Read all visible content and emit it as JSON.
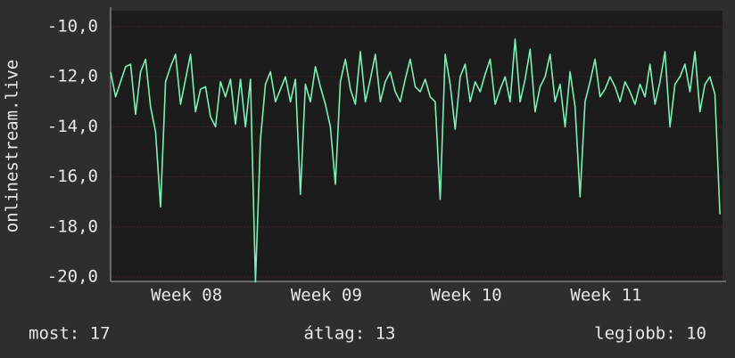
{
  "chart_data": {
    "type": "line",
    "y_label": "onlinestream.live",
    "color": "#7ef0b4",
    "grid": true,
    "xlim": [
      0,
      30.63
    ],
    "xticks": [
      {
        "value": 3.8,
        "label": "Week 08"
      },
      {
        "value": 10.8,
        "label": "Week 09"
      },
      {
        "value": 17.8,
        "label": "Week 10"
      },
      {
        "value": 24.8,
        "label": "Week 11"
      }
    ],
    "ylim": [
      -20.18,
      -9.36
    ],
    "yticks": [
      {
        "value": -10,
        "label": "-10,0"
      },
      {
        "value": -12,
        "label": "-12,0"
      },
      {
        "value": -14,
        "label": "-14,0"
      },
      {
        "value": -16,
        "label": "-16,0"
      },
      {
        "value": -18,
        "label": "-18,0"
      },
      {
        "value": -20,
        "label": "-20,0"
      }
    ],
    "x": [
      0,
      0.25,
      0.5,
      0.75,
      1,
      1.25,
      1.5,
      1.75,
      2,
      2.25,
      2.5,
      2.75,
      3,
      3.25,
      3.5,
      3.75,
      4,
      4.25,
      4.5,
      4.75,
      5,
      5.25,
      5.5,
      5.75,
      6,
      6.25,
      6.5,
      6.75,
      7,
      7.25,
      7.5,
      7.75,
      8,
      8.25,
      8.5,
      8.75,
      9,
      9.25,
      9.5,
      9.75,
      10,
      10.25,
      10.5,
      10.75,
      11,
      11.25,
      11.5,
      11.75,
      12,
      12.25,
      12.5,
      12.75,
      13,
      13.25,
      13.5,
      13.75,
      14,
      14.25,
      14.5,
      14.75,
      15,
      15.25,
      15.5,
      15.75,
      16,
      16.25,
      16.5,
      16.75,
      17,
      17.25,
      17.5,
      17.75,
      18,
      18.25,
      18.5,
      18.75,
      19,
      19.25,
      19.5,
      19.75,
      20,
      20.25,
      20.5,
      20.75,
      21,
      21.25,
      21.5,
      21.75,
      22,
      22.25,
      22.5,
      22.75,
      23,
      23.25,
      23.5,
      23.75,
      24,
      24.25,
      24.5,
      24.75,
      25,
      25.25,
      25.5,
      25.75,
      26,
      26.25,
      26.5,
      26.75,
      27,
      27.25,
      27.5,
      27.75,
      28,
      28.25,
      28.5,
      28.75,
      29,
      29.25,
      29.5,
      29.75,
      30,
      30.25,
      30.5
    ],
    "values": [
      -11.8,
      -12.8,
      -12.2,
      -11.6,
      -11.5,
      -13.5,
      -11.8,
      -11.3,
      -13.2,
      -14.2,
      -17.2,
      -12.2,
      -11.6,
      -11.1,
      -13.1,
      -12.1,
      -11.1,
      -13.4,
      -12.5,
      -12.4,
      -13.6,
      -14.0,
      -12.2,
      -12.8,
      -12.1,
      -13.9,
      -12.1,
      -14.0,
      -12.1,
      -20.2,
      -14.5,
      -12.3,
      -11.8,
      -13.0,
      -12.5,
      -12.0,
      -13.0,
      -12.1,
      -16.7,
      -12.3,
      -13.0,
      -11.6,
      -12.4,
      -13.1,
      -14.0,
      -16.3,
      -12.2,
      -11.3,
      -12.5,
      -13.1,
      -11.0,
      -13.0,
      -12.1,
      -11.1,
      -13.0,
      -12.2,
      -11.8,
      -12.6,
      -13.0,
      -12.1,
      -11.3,
      -12.4,
      -12.6,
      -12.1,
      -12.8,
      -13.0,
      -16.9,
      -11.1,
      -12.3,
      -14.1,
      -12.0,
      -11.5,
      -13.0,
      -12.2,
      -12.6,
      -11.9,
      -11.3,
      -13.1,
      -12.5,
      -12.0,
      -13.0,
      -10.5,
      -13.0,
      -12.1,
      -10.9,
      -13.4,
      -12.4,
      -12.0,
      -11.1,
      -13.0,
      -12.3,
      -14.0,
      -11.8,
      -13.2,
      -16.8,
      -13.0,
      -12.2,
      -11.3,
      -12.8,
      -12.5,
      -12.0,
      -12.4,
      -13.0,
      -12.2,
      -12.6,
      -13.1,
      -12.3,
      -12.8,
      -11.5,
      -13.1,
      -12.2,
      -11.0,
      -14.0,
      -12.3,
      -12.0,
      -11.5,
      -12.6,
      -11.0,
      -13.4,
      -12.3,
      -12.0,
      -12.7,
      -17.5
    ],
    "footer": {
      "current": "most: 17",
      "average": "átlag: 13",
      "best": "legjobb: 10"
    }
  }
}
